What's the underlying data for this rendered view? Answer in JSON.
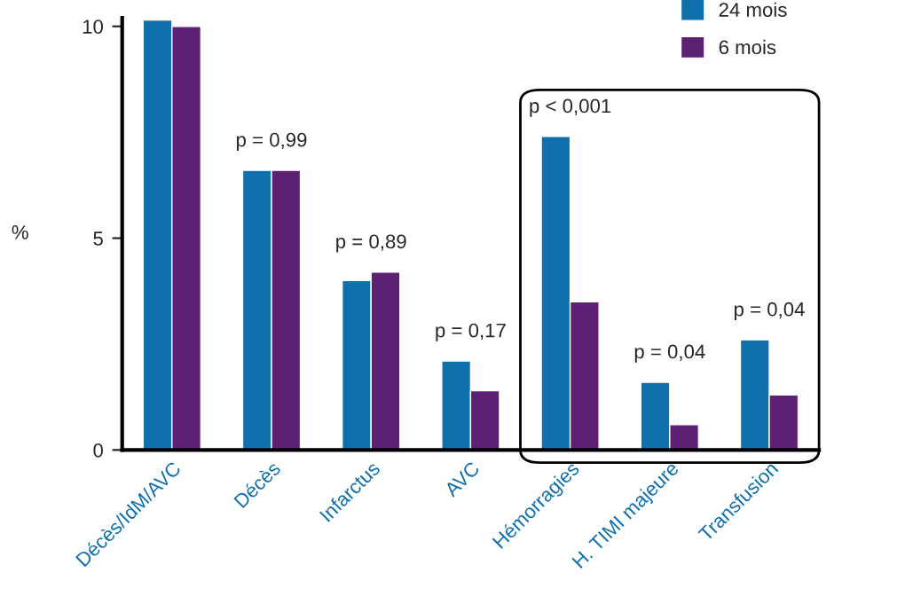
{
  "chart_data": {
    "type": "bar",
    "ylabel": "%",
    "categories": [
      "Décès/IdM/AVC",
      "Décès",
      "Infarctus",
      "AVC",
      "Hémorragies",
      "H. TIMI majeure",
      "Transfusion"
    ],
    "series": [
      {
        "name": "24 mois",
        "color": "#1070ac",
        "values": [
          10.15,
          6.6,
          4.0,
          2.1,
          7.4,
          1.6,
          2.6
        ]
      },
      {
        "name": "6 mois",
        "color": "#5e2072",
        "values": [
          10.0,
          6.6,
          4.2,
          1.4,
          3.5,
          0.6,
          1.3
        ]
      }
    ],
    "ylim": [
      0,
      10.2
    ],
    "yticks": [
      0,
      5,
      10
    ],
    "grid": false,
    "legend": "top right",
    "annotations": [
      {
        "text": "p = 0,99",
        "x": "Décès",
        "y": 6.6
      },
      {
        "text": "p = 0,89",
        "x": "Infarctus",
        "y": 4.2
      },
      {
        "text": "p = 0,17",
        "x": "AVC",
        "y": 2.1
      },
      {
        "text": "p < 0,001",
        "x": "Hémorragies",
        "y": 7.4
      },
      {
        "text": "p = 0,04",
        "x": "H. TIMI majeure",
        "y": 1.6
      },
      {
        "text": "p = 0,04",
        "x": "Transfusion",
        "y": 2.6
      }
    ]
  }
}
